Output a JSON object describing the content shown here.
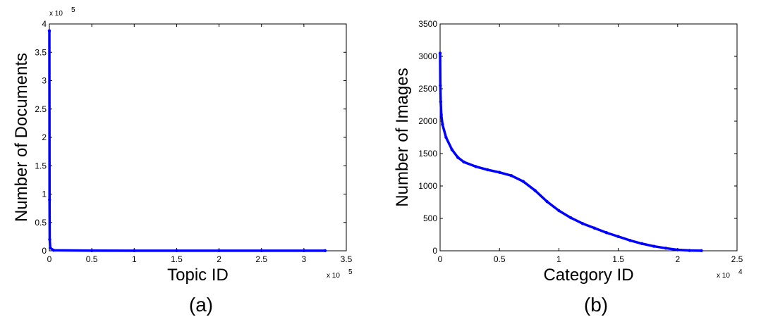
{
  "chart_data": [
    {
      "type": "line",
      "caption": "(a)",
      "xlabel": "Topic ID",
      "ylabel": "Number of Documents",
      "xlim": [
        0,
        3.5
      ],
      "ylim": [
        0,
        4
      ],
      "x_multiplier": "x 10",
      "x_exponent": "5",
      "y_multiplier": "x 10",
      "y_exponent": "5",
      "xticks": [
        "0",
        "0.5",
        "1",
        "1.5",
        "2",
        "2.5",
        "3",
        "3.5"
      ],
      "yticks": [
        "0",
        "0.5",
        "1",
        "1.5",
        "2",
        "2.5",
        "3",
        "3.5",
        "4"
      ],
      "color": "#0000ff",
      "series": [
        {
          "x": [
            0,
            0.002,
            0.004,
            0.01,
            0.05,
            0.5,
            1,
            1.5,
            2,
            2.5,
            3,
            3.25
          ],
          "y": [
            3.88,
            0.9,
            0.2,
            0.05,
            0.01,
            0.003,
            0.002,
            0.002,
            0.002,
            0.002,
            0.002,
            0.002
          ]
        }
      ]
    },
    {
      "type": "line",
      "caption": "(b)",
      "xlabel": "Category ID",
      "ylabel": "Number of Images",
      "xlim": [
        0,
        2.5
      ],
      "ylim": [
        0,
        3500
      ],
      "x_multiplier": "x 10",
      "x_exponent": "4",
      "xticks": [
        "0",
        "0.5",
        "1",
        "1.5",
        "2",
        "2.5"
      ],
      "yticks": [
        "0",
        "500",
        "1000",
        "1500",
        "2000",
        "2500",
        "3000",
        "3500"
      ],
      "color": "#0000ff",
      "series": [
        {
          "x": [
            0,
            0.002,
            0.005,
            0.01,
            0.02,
            0.05,
            0.1,
            0.15,
            0.2,
            0.3,
            0.4,
            0.5,
            0.6,
            0.7,
            0.8,
            0.9,
            1.0,
            1.1,
            1.2,
            1.3,
            1.4,
            1.5,
            1.6,
            1.7,
            1.8,
            1.9,
            2.0,
            2.1,
            2.2
          ],
          "y": [
            3050,
            2550,
            2300,
            2100,
            1950,
            1750,
            1560,
            1440,
            1370,
            1300,
            1250,
            1210,
            1160,
            1070,
            930,
            760,
            620,
            510,
            420,
            350,
            280,
            220,
            160,
            110,
            70,
            40,
            15,
            5,
            2
          ]
        }
      ]
    }
  ]
}
